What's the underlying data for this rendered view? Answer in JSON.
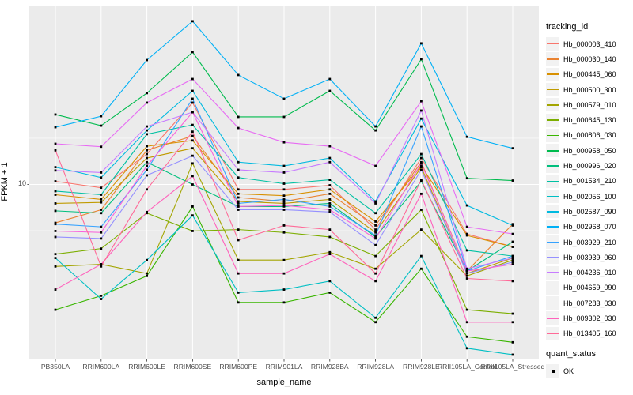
{
  "figure": {
    "panel_background": "#EBEBEB",
    "gridline_color": "#FFFFFF",
    "tick_label_color": "#4D4D4D",
    "marker_color": "#000000"
  },
  "chart_data": {
    "type": "line",
    "title": "",
    "xlabel": "sample_name",
    "ylabel": "FPKM + 1",
    "y_scale": "log10",
    "y_tick_labels": [
      "10"
    ],
    "y_major_gridlines": [
      10
    ],
    "y_minor_gridlines": [
      5.62,
      17.8
    ],
    "ylim": [
      1.1,
      80
    ],
    "legend_position": "right",
    "legend_title": "tracking_id",
    "quant_legend_title": "quant_status",
    "quant_legend_items": [
      "OK"
    ],
    "categories": [
      "PB350LA",
      "RRIM600LA",
      "RRIM600LE",
      "RRIM600SE",
      "RRIM600PE",
      "RRIM901LA",
      "RRIM928BA",
      "RRIM928LA",
      "RRIM928LE",
      "RRII105LA_Control",
      "RRII105LA_Stressed"
    ],
    "series": [
      {
        "name": "Hb_000003_410",
        "color": "#F8766D",
        "values": [
          10.4,
          9.6,
          14.6,
          27.7,
          9.4,
          9.4,
          9.9,
          5.7,
          13.9,
          5.4,
          4.6
        ]
      },
      {
        "name": "Hb_000030_140",
        "color": "#EA8331",
        "values": [
          6.2,
          7.3,
          15.3,
          18.3,
          8.5,
          8.1,
          8.9,
          6.0,
          13.2,
          3.4,
          6.1
        ]
      },
      {
        "name": "Hb_000445_060",
        "color": "#D89000",
        "values": [
          8.8,
          8.3,
          16.1,
          17.3,
          8.9,
          8.7,
          9.4,
          6.3,
          12.6,
          5.3,
          4.6
        ]
      },
      {
        "name": "Hb_000500_300",
        "color": "#C09B00",
        "values": [
          7.9,
          8.0,
          13.9,
          15.7,
          8.1,
          7.9,
          8.3,
          5.5,
          12.4,
          3.3,
          4.0
        ]
      },
      {
        "name": "Hb_000579_010",
        "color": "#A3A500",
        "values": [
          3.6,
          3.7,
          3.3,
          13.0,
          3.9,
          3.9,
          4.3,
          3.5,
          5.7,
          3.2,
          3.9
        ]
      },
      {
        "name": "Hb_000645_130",
        "color": "#7CAE00",
        "values": [
          4.2,
          4.5,
          7.0,
          5.6,
          5.7,
          5.5,
          5.2,
          4.1,
          7.3,
          2.1,
          2.0
        ]
      },
      {
        "name": "Hb_000806_030",
        "color": "#39B600",
        "values": [
          2.1,
          2.5,
          3.2,
          7.6,
          2.3,
          2.3,
          2.6,
          1.8,
          3.5,
          1.5,
          1.4
        ]
      },
      {
        "name": "Hb_000958_050",
        "color": "#00BB4E",
        "values": [
          23.9,
          20.8,
          31.2,
          52.0,
          23.2,
          23.2,
          32.1,
          19.6,
          47.6,
          10.8,
          10.5
        ]
      },
      {
        "name": "Hb_000996_020",
        "color": "#00BF7D",
        "values": [
          7.2,
          7.0,
          13.2,
          10.0,
          7.6,
          7.6,
          7.9,
          5.2,
          10.4,
          3.4,
          4.9
        ]
      },
      {
        "name": "Hb_001534_210",
        "color": "#00C1A3",
        "values": [
          9.2,
          8.8,
          18.7,
          21.0,
          10.9,
          10.1,
          10.6,
          7.0,
          14.6,
          4.4,
          4.1
        ]
      },
      {
        "name": "Hb_002056_100",
        "color": "#00BFC4",
        "values": [
          4.0,
          2.4,
          3.9,
          6.8,
          2.6,
          2.7,
          3.0,
          1.9,
          4.1,
          1.3,
          1.2
        ]
      },
      {
        "name": "Hb_002587_090",
        "color": "#00BAE0",
        "values": [
          12.4,
          10.9,
          19.6,
          32.1,
          13.2,
          12.6,
          13.9,
          8.1,
          22.7,
          7.7,
          6.0
        ]
      },
      {
        "name": "Hb_002968_070",
        "color": "#00B0F6",
        "values": [
          20.4,
          23.4,
          47.1,
          76.4,
          39.1,
          29.1,
          37.2,
          20.6,
          58.0,
          18.1,
          15.7
        ]
      },
      {
        "name": "Hb_003929_210",
        "color": "#35A2FF",
        "values": [
          6.1,
          5.9,
          12.0,
          29.1,
          7.9,
          8.3,
          7.6,
          5.3,
          20.6,
          3.4,
          4.1
        ]
      },
      {
        "name": "Hb_003939_060",
        "color": "#9590FF",
        "values": [
          5.2,
          5.1,
          11.2,
          14.3,
          7.3,
          7.3,
          7.1,
          4.7,
          12.0,
          3.3,
          3.8
        ]
      },
      {
        "name": "Hb_004236_010",
        "color": "#C77CFF",
        "values": [
          11.9,
          11.6,
          20.6,
          24.6,
          12.0,
          11.6,
          13.2,
          7.9,
          25.1,
          3.5,
          4.0
        ]
      },
      {
        "name": "Hb_004659_090",
        "color": "#E76BF3",
        "values": [
          16.6,
          16.0,
          27.7,
          37.2,
          20.2,
          16.9,
          16.1,
          12.6,
          28.2,
          5.9,
          5.4
        ]
      },
      {
        "name": "Hb_007283_030",
        "color": "#FA62DB",
        "values": [
          5.6,
          5.5,
          12.6,
          24.6,
          7.6,
          7.7,
          7.3,
          5.1,
          13.0,
          3.4,
          3.7
        ]
      },
      {
        "name": "Hb_009302_030",
        "color": "#FF62BC",
        "values": [
          2.7,
          3.7,
          7.1,
          11.1,
          3.3,
          3.3,
          4.2,
          3.0,
          8.9,
          1.8,
          1.8
        ]
      },
      {
        "name": "Hb_013405_160",
        "color": "#FF6A98",
        "values": [
          15.3,
          3.6,
          9.4,
          19.3,
          5.0,
          6.0,
          5.7,
          3.3,
          10.6,
          3.1,
          3.0
        ]
      }
    ]
  }
}
